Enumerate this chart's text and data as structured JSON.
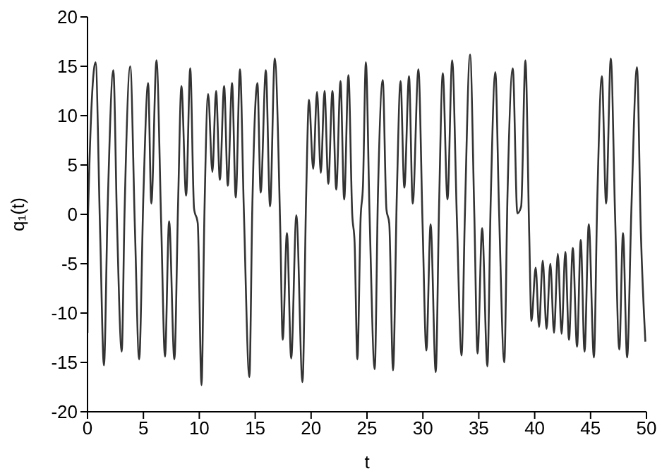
{
  "chart_data": {
    "type": "line",
    "xlabel": "t",
    "ylabel": "q₁(t)",
    "xlim": [
      0,
      50
    ],
    "xticks": [
      0,
      5,
      10,
      15,
      20,
      25,
      30,
      35,
      40,
      45,
      50
    ],
    "ylim": [
      -20,
      20
    ],
    "yticks": [
      -20,
      -15,
      -10,
      -5,
      0,
      5,
      10,
      15,
      20
    ],
    "grid": false,
    "legend": false,
    "marker": "none",
    "line_style": "solid",
    "series": [
      {
        "color": "#333333",
        "x": [
          0,
          0.05,
          0.72,
          1.13,
          1.47,
          1.8,
          2.31,
          2.64,
          3.06,
          3.31,
          3.82,
          4.24,
          4.62,
          5.0,
          5.42,
          5.71,
          6.17,
          6.59,
          6.93,
          7.3,
          7.77,
          8.1,
          8.4,
          8.82,
          9.19,
          9.53,
          9.86,
          10.2,
          10.45,
          10.79,
          11.17,
          11.5,
          11.84,
          12.22,
          12.55,
          12.93,
          13.26,
          13.64,
          13.98,
          14.48,
          14.74,
          15.2,
          15.49,
          15.95,
          16.33,
          16.75,
          17.25,
          17.46,
          17.84,
          18.22,
          18.68,
          19.23,
          19.56,
          19.81,
          20.19,
          20.53,
          20.87,
          21.2,
          21.54,
          21.91,
          22.25,
          22.63,
          22.96,
          23.34,
          23.68,
          23.89,
          24.14,
          24.43,
          24.64,
          24.9,
          25.23,
          25.69,
          25.98,
          26.41,
          26.74,
          26.99,
          27.33,
          27.67,
          28.0,
          28.34,
          28.76,
          29.09,
          29.6,
          29.97,
          30.31,
          30.69,
          31.15,
          31.45,
          31.78,
          32.2,
          32.62,
          33.04,
          33.46,
          33.75,
          34.22,
          34.6,
          34.89,
          35.3,
          35.77,
          36.06,
          36.48,
          36.81,
          37.28,
          37.57,
          38.04,
          38.45,
          38.79,
          39.17,
          39.51,
          39.71,
          40.09,
          40.39,
          40.72,
          41.06,
          41.4,
          41.73,
          42.07,
          42.41,
          42.74,
          43.07,
          43.41,
          43.79,
          44.12,
          44.46,
          44.84,
          45.3,
          45.59,
          46.01,
          46.39,
          46.81,
          47.19,
          47.57,
          47.9,
          48.27,
          48.65,
          49.15,
          49.5,
          49.9
        ],
        "values": [
          -12,
          0,
          15.4,
          -1.9,
          -15.3,
          0.6,
          14.6,
          -0.9,
          -13.9,
          0,
          15,
          -1.4,
          -14.7,
          2,
          13.3,
          1.1,
          15.6,
          -0.9,
          -14.4,
          -0.7,
          -14.7,
          1,
          13,
          1.9,
          14.8,
          0.6,
          -0.9,
          -17.3,
          -0.4,
          12.2,
          4.3,
          12.5,
          3.5,
          13,
          2.9,
          13.3,
          1.7,
          14.7,
          0.6,
          -16.5,
          0.6,
          13.3,
          2.2,
          14.6,
          0.8,
          15.8,
          -1.9,
          -12.7,
          -1.9,
          -14.6,
          -0.1,
          -17,
          2,
          11.6,
          4.6,
          12.4,
          4.2,
          12.5,
          3.1,
          12.5,
          2.5,
          13.5,
          1.5,
          14.1,
          0,
          -2.8,
          -14.7,
          -0.4,
          2.9,
          15.4,
          0,
          -15.7,
          2,
          13.6,
          0.5,
          -0.9,
          -15.8,
          2,
          13.5,
          2.7,
          14,
          1.1,
          14.7,
          -0.9,
          -13.8,
          -1,
          -16,
          1,
          14.3,
          1.5,
          15.6,
          -0.4,
          -14.3,
          -0.4,
          16.2,
          0,
          -14.1,
          -1.4,
          -15.4,
          1,
          14.4,
          0.5,
          -15,
          2,
          14.8,
          0.1,
          0.8,
          15.6,
          -1.9,
          -10.8,
          -5.4,
          -11.4,
          -4.7,
          -11.6,
          -5,
          -12,
          -4,
          -12.1,
          -3.8,
          -12.7,
          -3.4,
          -13.4,
          -2.6,
          -13.9,
          -1,
          -14.5,
          1,
          14,
          1.1,
          15.8,
          0,
          -13.7,
          -1.9,
          -14.5,
          0.5,
          14.9,
          -1.9,
          -12.9
        ]
      }
    ]
  }
}
